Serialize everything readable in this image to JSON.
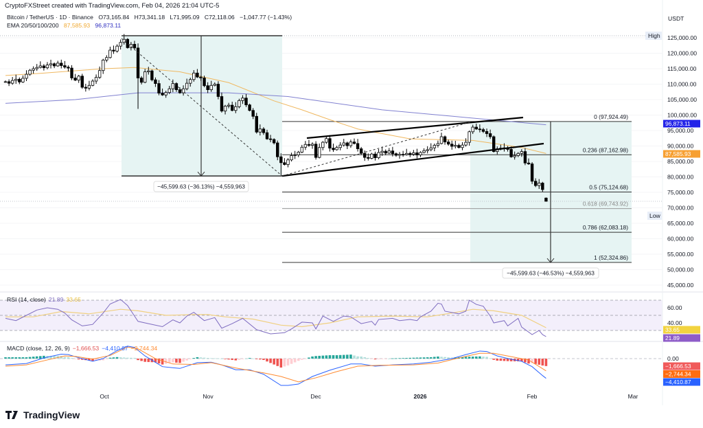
{
  "header": {
    "credit": "CryptoFXStreet created with TradingView.com, Feb 04, 2026 21:04 UTC-5",
    "symbol": "Bitcoin / TetherUS · 1D · Binance",
    "open": "O73,165.84",
    "high": "H73,341.18",
    "low": "L71,995.09",
    "close": "C72,118.06",
    "change": "−1,047.77 (−1.43%)",
    "ema_label": "EMA 20/50/100/200",
    "ema_value_1": "87,585.93",
    "ema_value_2": "96,873.11"
  },
  "axis": {
    "currency": "USDT",
    "price_ticks": [
      "125,000.00",
      "120,000.00",
      "115,000.00",
      "110,000.00",
      "105,000.00",
      "100,000.00",
      "95,000.00",
      "90,000.00",
      "85,000.00",
      "80,000.00",
      "75,000.00",
      "70,000.00",
      "65,000.00",
      "60,000.00",
      "55,000.00",
      "50,000.00",
      "45,000.00"
    ],
    "rsi_ticks": [
      "60.00",
      "40.00"
    ],
    "macd_ticks": [
      "0.00"
    ],
    "time_labels": [
      "Oct",
      "Nov",
      "Dec",
      "2026",
      "Feb",
      "Mar"
    ]
  },
  "markers": {
    "high": "High",
    "low": "Low"
  },
  "price_tags": [
    {
      "text": "96,873.11",
      "color": "#2424e8"
    },
    {
      "text": "87,585.93",
      "color": "#f7a032"
    }
  ],
  "rsi_tags": [
    {
      "text": "33.65",
      "color": "#f2d33f",
      "fg": "#131722"
    },
    {
      "text": "21.89",
      "color": "#8e5cc8",
      "fg": "#ffffff"
    }
  ],
  "macd_tags": [
    {
      "text": "−1,666.53",
      "color": "#f05a5a"
    },
    {
      "text": "−2,744.34",
      "color": "#ff6d10"
    },
    {
      "text": "−4,410.87",
      "color": "#2962ff"
    }
  ],
  "fib": [
    {
      "level": 0,
      "price": 97924.49,
      "label": "0 (97,924.49)"
    },
    {
      "level": 0.236,
      "price": 87162.98,
      "label": "0.236 (87,162.98)"
    },
    {
      "level": 0.5,
      "price": 75124.68,
      "label": "0.5 (75,124.68)"
    },
    {
      "level": 0.618,
      "price": 69743.92,
      "label": "0.618 (69,743.92)"
    },
    {
      "level": 0.786,
      "price": 62083.18,
      "label": "0.786 (62,083.18)"
    },
    {
      "level": 1,
      "price": 52324.86,
      "label": "1 (52,324.86)"
    }
  ],
  "measure_labels": {
    "left": "−45,599.63 (−36.13%) −4,559,963",
    "right": "−45,599.63 (−46.53%) −4,559,963"
  },
  "rsi_legend": {
    "label": "RSI (14, close)",
    "rsi": "21.89",
    "ma": "33.65"
  },
  "macd_legend": {
    "label": "MACD (close, 12, 26, 9)",
    "hist": "−1,666.53",
    "macd": "−4,410.87",
    "signal": "−2,744.34"
  },
  "logo": "TradingView",
  "colors": {
    "up_body": "#ffffff",
    "down_body": "#000000",
    "ema50": "#f0b860",
    "ema200": "#8080d0",
    "rsi": "#7e6cc0",
    "rsi_ma": "#f0d080",
    "macd": "#2962ff",
    "signal": "#ff8a30",
    "hist_up": "#26a69a",
    "hist_down": "#ef5350",
    "range_fill": "#e6f4f3"
  },
  "chart_data": {
    "type": "candlestick",
    "title": "Bitcoin / TetherUS · 1D · Binance",
    "ylabel": "USDT",
    "ylim": [
      45000,
      127000
    ],
    "x_tick_labels": [
      "Oct",
      "Nov",
      "Dec",
      "2026",
      "Feb",
      "Mar"
    ],
    "closes": [
      110800,
      110300,
      111200,
      111600,
      110700,
      111900,
      113200,
      114500,
      115000,
      115400,
      115900,
      115300,
      116200,
      116600,
      115900,
      116800,
      116000,
      115500,
      115200,
      112000,
      111300,
      112600,
      109000,
      108700,
      109600,
      111000,
      112200,
      114400,
      117800,
      118600,
      121000,
      120700,
      122300,
      123500,
      124500,
      121800,
      122900,
      121700,
      112000,
      110600,
      114000,
      114300,
      111400,
      110200,
      107100,
      106500,
      107300,
      108500,
      110200,
      108200,
      107200,
      108500,
      110300,
      111500,
      113600,
      112300,
      112000,
      109500,
      108200,
      109600,
      110000,
      106000,
      101300,
      102900,
      103200,
      101500,
      102700,
      104700,
      105500,
      103300,
      101500,
      99600,
      94500,
      95500,
      94300,
      92300,
      92100,
      91000,
      86500,
      84600,
      84000,
      85500,
      86900,
      87100,
      88000,
      89600,
      90500,
      90200,
      90600,
      86300,
      89500,
      91200,
      92400,
      89300,
      88800,
      89500,
      90300,
      91000,
      90100,
      91300,
      90800,
      89100,
      87600,
      86300,
      86000,
      87400,
      86200,
      87900,
      88300,
      87700,
      88400,
      87500,
      87000,
      87300,
      87200,
      87600,
      87300,
      87800,
      87100,
      87900,
      88500,
      88800,
      89400,
      90200,
      90800,
      93000,
      91300,
      90600,
      89900,
      90200,
      89500,
      90300,
      91200,
      94600,
      96100,
      95500,
      95300,
      94700,
      94000,
      93000,
      88200,
      89100,
      89300,
      89400,
      88900,
      86500,
      86900,
      87600,
      88200,
      84500,
      84200,
      78600,
      77200,
      78000,
      75900,
      72118.06
    ],
    "last_candle": {
      "open": 73165.84,
      "high": 73341.18,
      "low": 71995.09,
      "close": 72118.06
    },
    "notable_wicks": [
      {
        "bar": 34,
        "high": 126200
      },
      {
        "bar": 38,
        "low": 102000
      },
      {
        "bar": 79,
        "low": 80600
      }
    ],
    "ema50": [
      [
        0,
        112800
      ],
      [
        10,
        113500
      ],
      [
        28,
        115000
      ],
      [
        37,
        115400
      ],
      [
        50,
        114000
      ],
      [
        64,
        110500
      ],
      [
        77,
        104600
      ],
      [
        85,
        101700
      ],
      [
        93,
        98500
      ],
      [
        101,
        95500
      ],
      [
        116,
        92300
      ],
      [
        134,
        91800
      ],
      [
        142,
        90500
      ],
      [
        148,
        89500
      ],
      [
        155,
        87585.93
      ]
    ],
    "ema200": [
      [
        0,
        103800
      ],
      [
        20,
        105000
      ],
      [
        38,
        107200
      ],
      [
        64,
        107200
      ],
      [
        81,
        106000
      ],
      [
        108,
        101700
      ],
      [
        136,
        98800
      ],
      [
        155,
        96873.11
      ]
    ],
    "rsi": {
      "ylim": [
        15,
        75
      ],
      "bands": [
        70,
        50,
        30
      ],
      "values": [
        [
          0,
          46
        ],
        [
          3,
          43
        ],
        [
          6,
          50
        ],
        [
          9,
          57
        ],
        [
          12,
          60
        ],
        [
          15,
          58
        ],
        [
          17,
          53
        ],
        [
          19,
          44
        ],
        [
          22,
          36
        ],
        [
          25,
          38
        ],
        [
          28,
          53
        ],
        [
          30,
          65
        ],
        [
          33,
          71
        ],
        [
          35,
          63
        ],
        [
          38,
          42
        ],
        [
          41,
          39
        ],
        [
          45,
          35
        ],
        [
          48,
          44
        ],
        [
          50,
          40
        ],
        [
          52,
          49
        ],
        [
          54,
          54
        ],
        [
          57,
          43
        ],
        [
          60,
          47
        ],
        [
          62,
          33
        ],
        [
          65,
          39
        ],
        [
          68,
          46
        ],
        [
          72,
          31
        ],
        [
          76,
          25.5
        ],
        [
          80,
          27
        ],
        [
          82,
          32
        ],
        [
          85,
          41
        ],
        [
          88,
          40
        ],
        [
          89,
          32
        ],
        [
          91,
          49
        ],
        [
          94,
          42
        ],
        [
          97,
          49
        ],
        [
          99,
          48
        ],
        [
          102,
          39
        ],
        [
          105,
          42
        ],
        [
          106,
          37
        ],
        [
          107,
          44.5
        ],
        [
          111,
          46
        ],
        [
          113,
          43
        ],
        [
          116,
          44.5
        ],
        [
          118,
          43
        ],
        [
          119,
          48
        ],
        [
          122,
          55.5
        ],
        [
          124,
          66
        ],
        [
          125,
          65
        ],
        [
          126,
          55.5
        ],
        [
          130,
          52
        ],
        [
          132,
          55.5
        ],
        [
          133,
          70
        ],
        [
          135,
          64.5
        ],
        [
          137,
          62
        ],
        [
          139,
          49
        ],
        [
          140,
          40
        ],
        [
          143,
          43
        ],
        [
          144,
          36
        ],
        [
          147,
          46
        ],
        [
          148,
          34.5
        ],
        [
          151,
          24.5
        ],
        [
          153,
          30
        ],
        [
          154,
          24.5
        ],
        [
          155,
          21.89
        ]
      ],
      "ma": [
        [
          0,
          48
        ],
        [
          8,
          48
        ],
        [
          16,
          55
        ],
        [
          24,
          52
        ],
        [
          33,
          58
        ],
        [
          38,
          56
        ],
        [
          46,
          50
        ],
        [
          54,
          51
        ],
        [
          58,
          51
        ],
        [
          63,
          48
        ],
        [
          71,
          45
        ],
        [
          79,
          37
        ],
        [
          85,
          35
        ],
        [
          93,
          40
        ],
        [
          101,
          48
        ],
        [
          111,
          49
        ],
        [
          121,
          48
        ],
        [
          128,
          53
        ],
        [
          134,
          58
        ],
        [
          140,
          56
        ],
        [
          148,
          50
        ],
        [
          155,
          33.65
        ]
      ]
    },
    "macd": {
      "macd": [
        [
          0,
          -1400
        ],
        [
          6,
          -1100
        ],
        [
          11,
          150
        ],
        [
          16,
          1000
        ],
        [
          18,
          900
        ],
        [
          21,
          200
        ],
        [
          25,
          -600
        ],
        [
          28,
          0
        ],
        [
          32,
          1800
        ],
        [
          35,
          2800
        ],
        [
          37,
          2500
        ],
        [
          40,
          600
        ],
        [
          45,
          -1800
        ],
        [
          50,
          -2200
        ],
        [
          55,
          -900
        ],
        [
          59,
          -800
        ],
        [
          62,
          -1400
        ],
        [
          66,
          -2500
        ],
        [
          70,
          -2500
        ],
        [
          74,
          -3500
        ],
        [
          79,
          -6000
        ],
        [
          81,
          -6000
        ],
        [
          84,
          -5700
        ],
        [
          88,
          -4000
        ],
        [
          93,
          -2600
        ],
        [
          99,
          -1200
        ],
        [
          102,
          -1200
        ],
        [
          106,
          -1700
        ],
        [
          111,
          -1400
        ],
        [
          117,
          -1200
        ],
        [
          122,
          -800
        ],
        [
          128,
          0
        ],
        [
          132,
          900
        ],
        [
          136,
          1700
        ],
        [
          138,
          1600
        ],
        [
          141,
          600
        ],
        [
          145,
          -150
        ],
        [
          148,
          -600
        ],
        [
          151,
          -1800
        ],
        [
          154,
          -3800
        ],
        [
          155,
          -4410.87
        ]
      ],
      "signal": [
        [
          0,
          -1700
        ],
        [
          6,
          -1400
        ],
        [
          12,
          -300
        ],
        [
          17,
          600
        ],
        [
          20,
          500
        ],
        [
          25,
          -100
        ],
        [
          30,
          700
        ],
        [
          35,
          2600
        ],
        [
          38,
          2200
        ],
        [
          43,
          0
        ],
        [
          48,
          -1200
        ],
        [
          54,
          -1300
        ],
        [
          59,
          -900
        ],
        [
          66,
          -2100
        ],
        [
          74,
          -3200
        ],
        [
          79,
          -4000
        ],
        [
          84,
          -5200
        ],
        [
          89,
          -4300
        ],
        [
          95,
          -2900
        ],
        [
          101,
          -1700
        ],
        [
          107,
          -1500
        ],
        [
          117,
          -1400
        ],
        [
          124,
          -1000
        ],
        [
          130,
          150
        ],
        [
          136,
          1200
        ],
        [
          140,
          1200
        ],
        [
          145,
          450
        ],
        [
          150,
          -300
        ],
        [
          155,
          -2744.34
        ]
      ]
    }
  }
}
